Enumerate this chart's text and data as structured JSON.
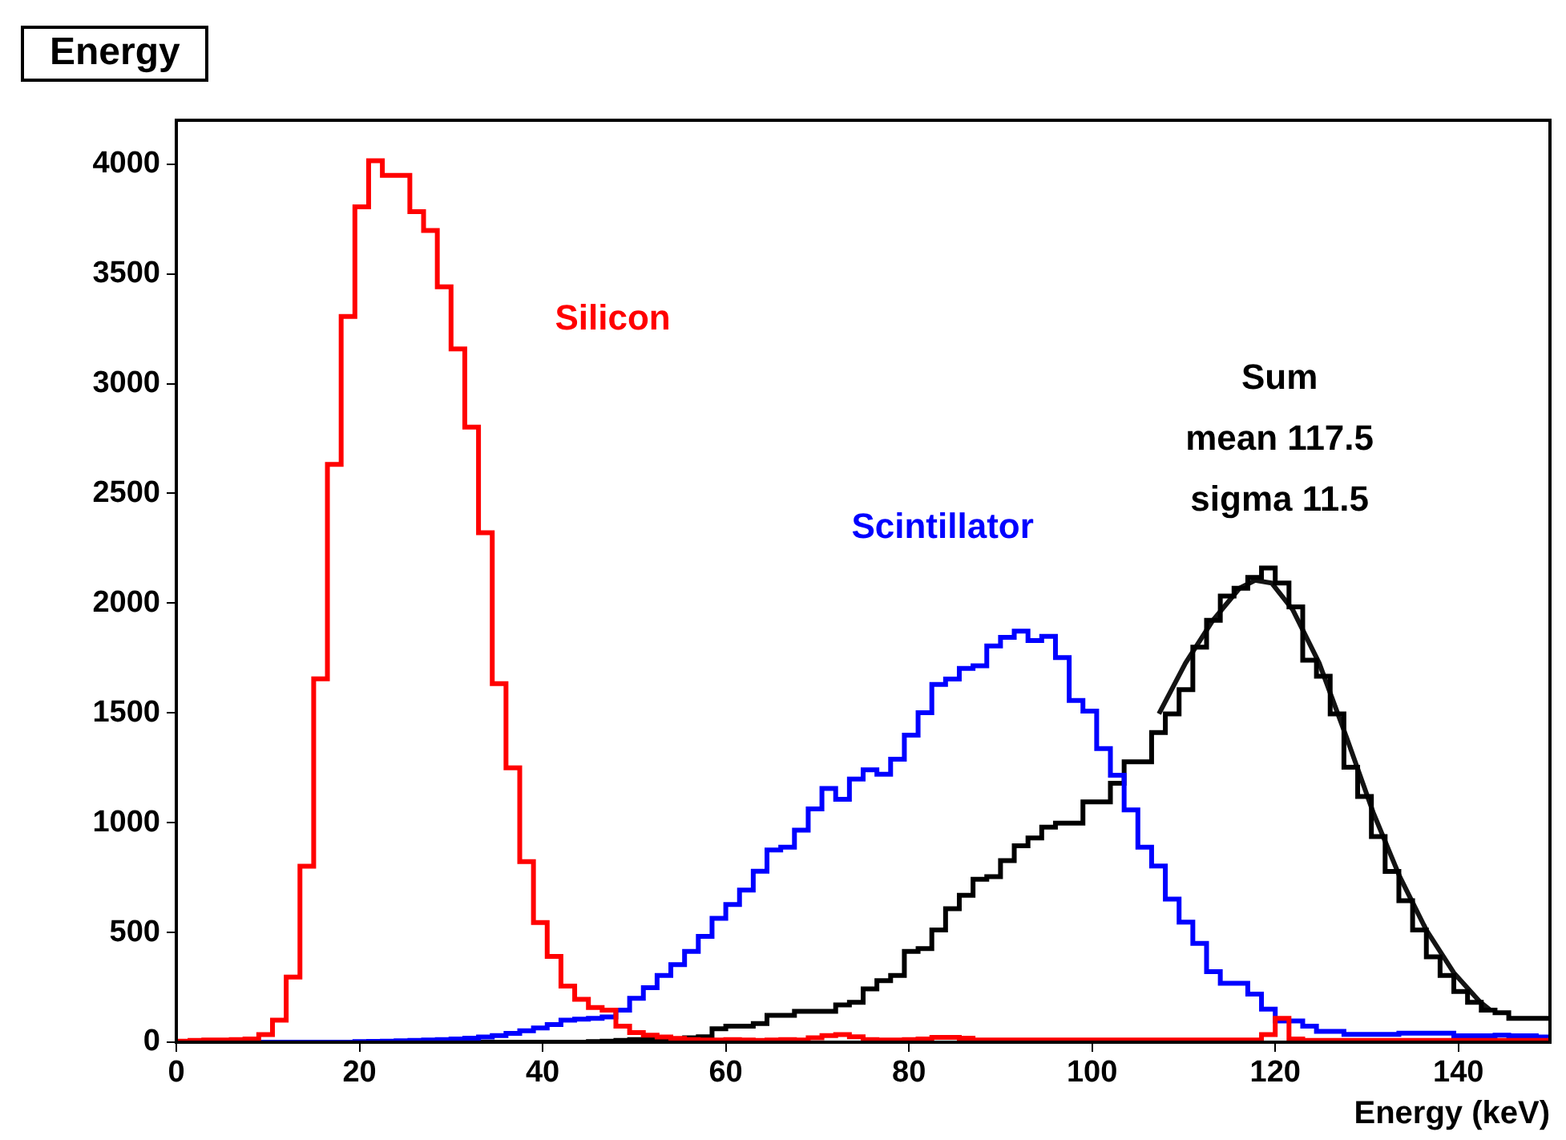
{
  "chart_data": {
    "type": "histogram",
    "title": "Energy",
    "xlabel": "Energy (keV)",
    "bins": [
      0,
      1.5,
      3,
      4.5,
      6,
      7.5,
      9,
      10.5,
      12,
      13.5,
      15,
      16.5,
      18,
      19.5,
      21,
      22.5,
      24,
      25.5,
      27,
      28.5,
      30,
      31.5,
      33,
      34.5,
      36,
      37.5,
      39,
      40.5,
      42,
      43.5,
      45,
      46.5,
      48,
      49.5,
      51,
      52.5,
      54,
      55.5,
      57,
      58.5,
      60,
      61.5,
      63,
      64.5,
      66,
      67.5,
      69,
      70.5,
      72,
      73.5,
      75,
      76.5,
      78,
      79.5,
      81,
      82.5,
      84,
      85.5,
      87,
      88.5,
      90,
      91.5,
      93,
      94.5,
      96,
      97.5,
      99,
      100.5,
      102,
      103.5,
      105,
      106.5,
      108,
      109.5,
      111,
      112.5,
      114,
      115.5,
      117,
      118.5,
      120,
      121.5,
      123,
      124.5,
      126,
      127.5,
      129,
      130.5,
      132,
      133.5,
      135,
      136.5,
      138,
      139.5,
      141,
      142.5,
      144,
      145.5,
      147,
      148.5,
      150
    ],
    "series": [
      {
        "name": "Silicon",
        "color": "#ff0000",
        "values": [
          5,
          8,
          10,
          10,
          12,
          15,
          35,
          100,
          297,
          802,
          1655,
          2632,
          3306,
          3806,
          4016,
          3949,
          3949,
          3784,
          3698,
          3441,
          3158,
          2802,
          2321,
          1633,
          1250,
          823,
          545,
          391,
          256,
          195,
          158,
          146,
          73,
          44,
          32,
          24,
          17,
          12,
          10,
          10,
          12,
          10,
          8,
          10,
          12,
          10,
          20,
          30,
          35,
          25,
          12,
          10,
          10,
          12,
          15,
          22,
          22,
          18,
          10,
          10,
          10,
          10,
          10,
          10,
          10,
          10,
          10,
          10,
          10,
          10,
          10,
          10,
          10,
          10,
          10,
          10,
          10,
          10,
          10,
          35,
          109,
          15,
          8,
          8,
          8,
          8,
          8,
          8,
          8,
          8,
          8,
          8,
          8,
          8,
          8,
          8,
          8,
          8,
          8,
          8
        ]
      },
      {
        "name": "Scintillator",
        "color": "#0000ff",
        "values": [
          0,
          0,
          0,
          0,
          0,
          0,
          0,
          0,
          0,
          0,
          0,
          0,
          0,
          3,
          4,
          5,
          6,
          8,
          10,
          12,
          15,
          18,
          24,
          30,
          40,
          52,
          65,
          80,
          100,
          105,
          109,
          115,
          146,
          200,
          248,
          304,
          353,
          414,
          482,
          564,
          627,
          693,
          779,
          876,
          888,
          966,
          1063,
          1156,
          1107,
          1199,
          1241,
          1221,
          1289,
          1399,
          1501,
          1630,
          1654,
          1703,
          1715,
          1805,
          1844,
          1873,
          1830,
          1849,
          1752,
          1557,
          1508,
          1338,
          1216,
          1058,
          888,
          803,
          652,
          547,
          450,
          321,
          268,
          268,
          219,
          151,
          97,
          97,
          73,
          49,
          49,
          36,
          36,
          36,
          36,
          41,
          41,
          41,
          41,
          29,
          29,
          29,
          32,
          29,
          29,
          24
        ]
      },
      {
        "name": "Sum",
        "color": "#000000",
        "values": [
          0,
          0,
          0,
          0,
          0,
          0,
          0,
          0,
          0,
          0,
          0,
          0,
          0,
          0,
          0,
          0,
          0,
          0,
          0,
          0,
          0,
          0,
          0,
          0,
          0,
          0,
          0,
          0,
          0,
          0,
          3,
          5,
          8,
          12,
          12,
          15,
          15,
          20,
          25,
          61,
          73,
          73,
          85,
          122,
          122,
          141,
          141,
          141,
          170,
          182,
          243,
          280,
          304,
          414,
          426,
          511,
          608,
          669,
          742,
          754,
          827,
          895,
          930,
          980,
          998,
          998,
          1095,
          1095,
          1180,
          1277,
          1277,
          1411,
          1496,
          1606,
          1800,
          1922,
          2032,
          2068,
          2117,
          2160,
          2092,
          1983,
          1740,
          1667,
          1496,
          1253,
          1119,
          937,
          778,
          645,
          511,
          389,
          304,
          231,
          182,
          146,
          134,
          109,
          109,
          109
        ]
      },
      {
        "type": "line",
        "color": "#141414",
        "x": [
          107.3,
          110.2,
          113.2,
          116.1,
          117.8,
          119.6,
          121.9,
          124.8,
          127.8,
          130.7,
          133.6,
          136.5,
          139.5,
          142.4,
          143.5
        ],
        "values": [
          1496,
          1727,
          1922,
          2068,
          2104,
          2092,
          1971,
          1727,
          1387,
          1046,
          754,
          511,
          316,
          182,
          146
        ]
      }
    ],
    "annotations": [
      "mean 117.5",
      "sigma 11.5"
    ],
    "xlim": [
      0,
      150
    ],
    "xticks": [
      0,
      20,
      40,
      60,
      80,
      100,
      120,
      140
    ],
    "ylim": [
      0,
      4200
    ],
    "yticks": [
      0,
      500,
      1000,
      1500,
      2000,
      2500,
      3000,
      3500,
      4000
    ]
  }
}
